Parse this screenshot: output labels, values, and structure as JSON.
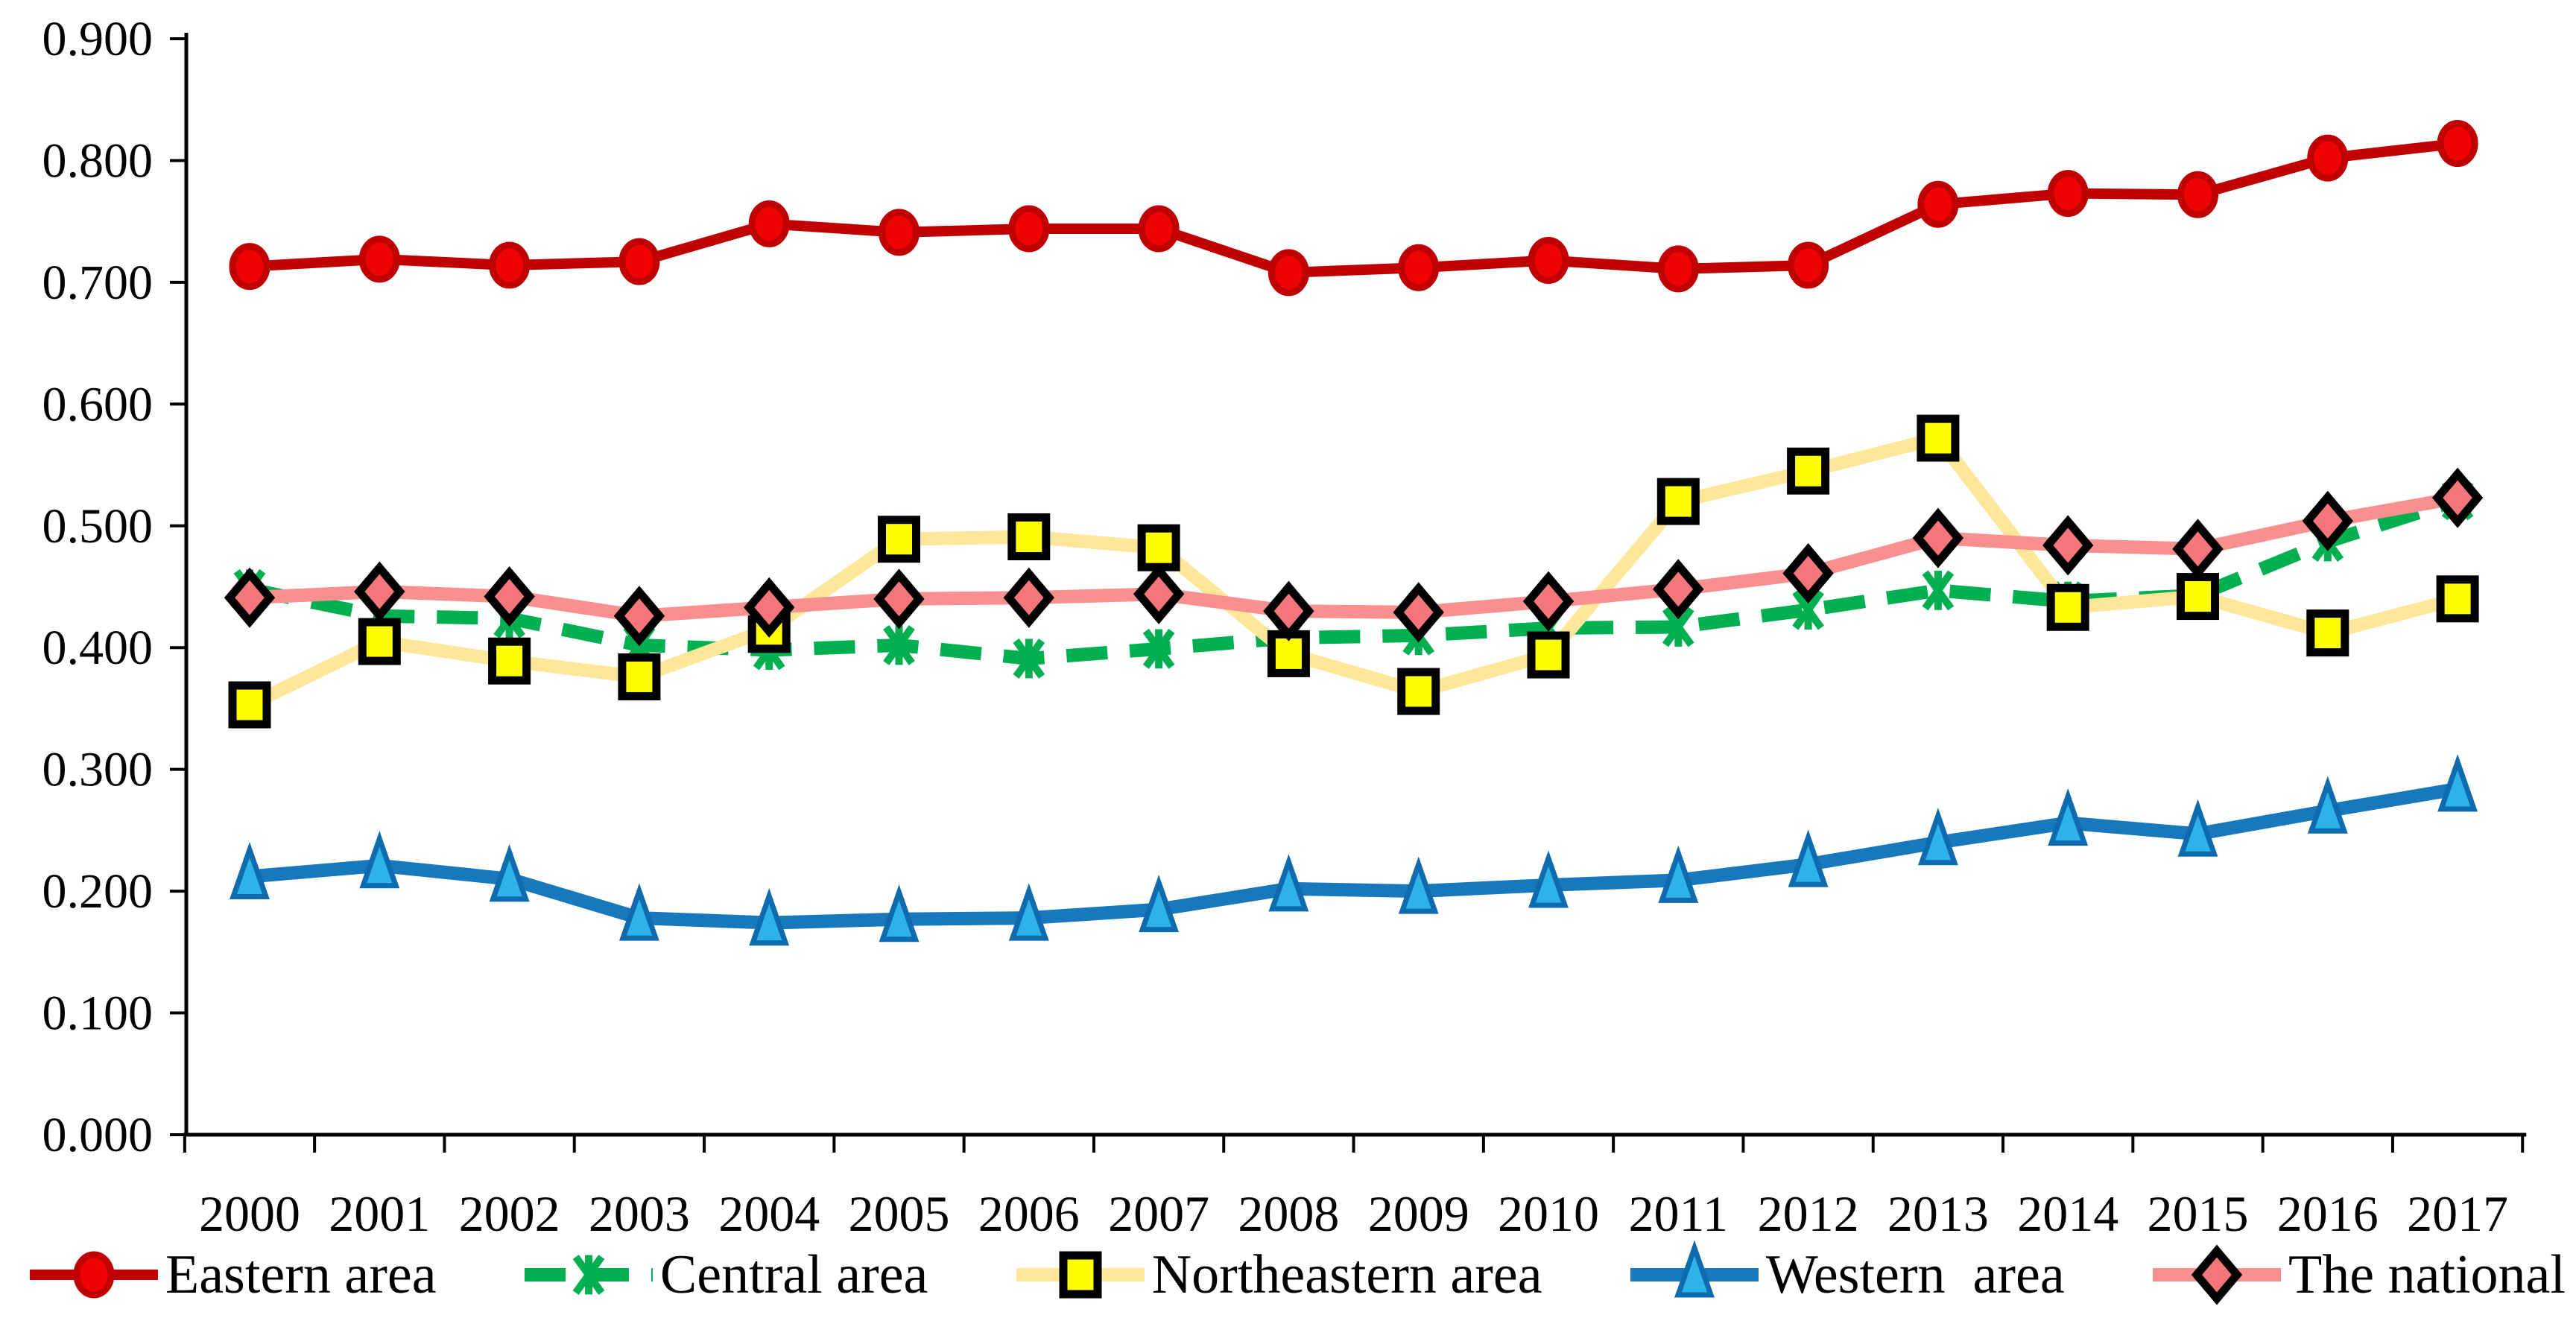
{
  "chart_data": {
    "type": "line",
    "title": "",
    "xlabel": "",
    "ylabel": "",
    "x": [
      2000,
      2001,
      2002,
      2003,
      2004,
      2005,
      2006,
      2007,
      2008,
      2009,
      2010,
      2011,
      2012,
      2013,
      2014,
      2015,
      2016,
      2017
    ],
    "ylim": [
      0.0,
      0.9
    ],
    "ytick_step": 0.1,
    "ytick_decimals": 3,
    "grid": false,
    "legend_position": "bottom",
    "background_color": "#FFFFFF",
    "axis_color": "#000000",
    "series": [
      {
        "name": "Eastern area",
        "key": "eastern",
        "marker": "circle",
        "dashed": false,
        "line_color": "#C00000",
        "marker_fill": "#EE0202",
        "marker_stroke": "#C00000",
        "values": [
          0.713,
          0.719,
          0.714,
          0.717,
          0.748,
          0.741,
          0.744,
          0.744,
          0.708,
          0.712,
          0.718,
          0.711,
          0.714,
          0.764,
          0.773,
          0.772,
          0.802,
          0.814
        ]
      },
      {
        "name": "Central area",
        "key": "central",
        "marker": "star",
        "dashed": true,
        "line_color": "#00B050",
        "marker_fill": "#00B050",
        "marker_stroke": "#00B050",
        "values": [
          0.448,
          0.426,
          0.424,
          0.402,
          0.398,
          0.402,
          0.391,
          0.399,
          0.408,
          0.41,
          0.416,
          0.417,
          0.431,
          0.447,
          0.438,
          0.443,
          0.487,
          0.521
        ]
      },
      {
        "name": "Northeastern area",
        "key": "northeastern",
        "marker": "square",
        "dashed": false,
        "line_color": "#FFE699",
        "marker_fill": "#FFFF00",
        "marker_stroke": "#000000",
        "values": [
          0.353,
          0.405,
          0.389,
          0.376,
          0.415,
          0.489,
          0.491,
          0.482,
          0.395,
          0.364,
          0.394,
          0.52,
          0.545,
          0.572,
          0.433,
          0.442,
          0.412,
          0.44
        ]
      },
      {
        "name": "Western  area",
        "key": "western",
        "marker": "triangle",
        "dashed": false,
        "line_color": "#1878BE",
        "marker_fill": "#2EB3E8",
        "marker_stroke": "#0E6BAE",
        "values": [
          0.212,
          0.221,
          0.21,
          0.178,
          0.174,
          0.177,
          0.178,
          0.185,
          0.202,
          0.2,
          0.205,
          0.209,
          0.222,
          0.24,
          0.256,
          0.247,
          0.266,
          0.284
        ]
      },
      {
        "name": "The national",
        "key": "national",
        "marker": "diamond",
        "dashed": false,
        "line_color": "#F9908F",
        "marker_fill": "#F4757A",
        "marker_stroke": "#000000",
        "values": [
          0.441,
          0.446,
          0.442,
          0.426,
          0.433,
          0.44,
          0.441,
          0.444,
          0.43,
          0.429,
          0.438,
          0.448,
          0.461,
          0.49,
          0.484,
          0.481,
          0.504,
          0.523
        ]
      }
    ]
  }
}
